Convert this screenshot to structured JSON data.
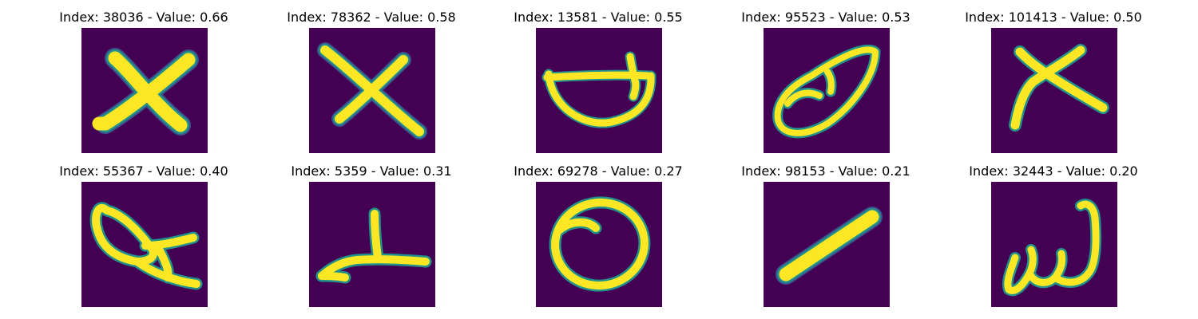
{
  "colors": {
    "background": "#440154",
    "stroke_core": "#fde725",
    "stroke_mid": "#21918c",
    "stroke_edge": "#3b528b"
  },
  "panels": [
    {
      "title": "Index: 38036 - Value: 0.66",
      "glyph": "x-shape"
    },
    {
      "title": "Index: 78362 - Value: 0.58",
      "glyph": "x-shape"
    },
    {
      "title": "Index: 13581 - Value: 0.55",
      "glyph": "bowl-shape"
    },
    {
      "title": "Index: 95523 - Value: 0.53",
      "glyph": "loop-shape"
    },
    {
      "title": "Index: 101413 - Value: 0.50",
      "glyph": "x-shape"
    },
    {
      "title": "Index: 55367 - Value: 0.40",
      "glyph": "loop-tail-shape"
    },
    {
      "title": "Index: 5359 - Value: 0.31",
      "glyph": "hook-shape"
    },
    {
      "title": "Index: 69278 - Value: 0.27",
      "glyph": "oval-shape"
    },
    {
      "title": "Index: 98153 - Value: 0.21",
      "glyph": "diagonal-stroke"
    },
    {
      "title": "Index: 32443 - Value: 0.20",
      "glyph": "w-loop-shape"
    }
  ]
}
